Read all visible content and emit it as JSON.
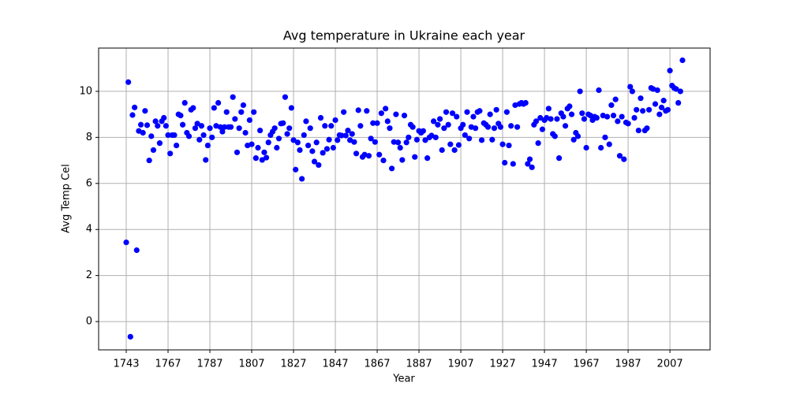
{
  "chart_data": {
    "type": "scatter",
    "title": "Avg temperature in Ukraine each year",
    "x_label": "Year",
    "y_label": "Avg Temp Cel",
    "color": "#0000ff",
    "grid": true,
    "ylim": [
      -1.23,
      11.88
    ],
    "yticks": [
      0,
      2,
      4,
      6,
      8,
      10
    ],
    "categories": [
      1743,
      null,
      null,
      null,
      null,
      null,
      null,
      null,
      null,
      null,
      null,
      null,
      null,
      null,
      null,
      null,
      null,
      null,
      null,
      null,
      1767,
      null,
      null,
      null,
      null,
      null,
      null,
      null,
      null,
      null,
      null,
      null,
      null,
      null,
      null,
      null,
      null,
      null,
      null,
      null,
      1787,
      null,
      null,
      null,
      null,
      null,
      null,
      null,
      null,
      null,
      null,
      null,
      null,
      null,
      null,
      null,
      null,
      null,
      null,
      null,
      1807,
      null,
      null,
      null,
      null,
      null,
      null,
      null,
      null,
      null,
      null,
      null,
      null,
      null,
      null,
      null,
      null,
      null,
      null,
      null,
      1827,
      null,
      null,
      null,
      null,
      null,
      null,
      null,
      null,
      null,
      null,
      null,
      null,
      null,
      null,
      null,
      null,
      null,
      null,
      null,
      1847,
      null,
      null,
      null,
      null,
      null,
      null,
      null,
      null,
      null,
      null,
      null,
      null,
      null,
      null,
      null,
      null,
      null,
      null,
      null,
      1867,
      null,
      null,
      null,
      null,
      null,
      null,
      null,
      null,
      null,
      null,
      null,
      null,
      null,
      null,
      null,
      null,
      null,
      null,
      null,
      1887,
      null,
      null,
      null,
      null,
      null,
      null,
      null,
      null,
      null,
      null,
      null,
      null,
      null,
      null,
      null,
      null,
      null,
      null,
      null,
      1907,
      null,
      null,
      null,
      null,
      null,
      null,
      null,
      null,
      null,
      null,
      null,
      null,
      null,
      null,
      null,
      null,
      null,
      null,
      null,
      1927,
      null,
      null,
      null,
      null,
      null,
      null,
      null,
      null,
      null,
      null,
      null,
      null,
      null,
      null,
      null,
      null,
      null,
      null,
      null,
      1947,
      null,
      null,
      null,
      null,
      null,
      null,
      null,
      null,
      null,
      null,
      null,
      null,
      null,
      null,
      null,
      null,
      null,
      null,
      null,
      1967,
      null,
      null,
      null,
      null,
      null,
      null,
      null,
      null,
      null,
      null,
      null,
      null,
      null,
      null,
      null,
      null,
      null,
      null,
      null,
      1987,
      null,
      null,
      null,
      null,
      null,
      null,
      null,
      null,
      null,
      null,
      null,
      null,
      null,
      null,
      null,
      null,
      null,
      null,
      null,
      2007,
      null,
      null,
      null,
      null,
      null,
      null
    ],
    "values": [
      3.44,
      10.4,
      -0.66,
      8.97,
      9.3,
      3.1,
      8.28,
      8.55,
      8.2,
      9.15,
      8.53,
      7.0,
      8.05,
      7.45,
      8.7,
      8.5,
      7.75,
      8.7,
      8.85,
      8.5,
      8.1,
      7.3,
      8.1,
      8.1,
      7.65,
      9.0,
      8.95,
      8.55,
      9.5,
      8.2,
      8.05,
      9.2,
      9.28,
      8.4,
      8.6,
      7.9,
      8.5,
      8.1,
      7.02,
      7.65,
      8.4,
      8.0,
      9.28,
      8.5,
      9.5,
      8.45,
      8.25,
      8.45,
      9.1,
      8.45,
      8.45,
      9.75,
      8.8,
      7.35,
      8.4,
      9.1,
      9.4,
      8.2,
      7.65,
      8.75,
      7.7,
      9.1,
      7.1,
      7.55,
      8.3,
      7.02,
      7.35,
      7.12,
      7.78,
      8.1,
      8.25,
      8.4,
      7.55,
      7.95,
      8.6,
      8.62,
      9.75,
      8.15,
      8.4,
      9.28,
      7.88,
      6.6,
      7.78,
      7.45,
      6.2,
      8.1,
      8.7,
      7.65,
      8.4,
      7.4,
      6.95,
      7.78,
      6.8,
      8.85,
      7.33,
      8.5,
      7.5,
      7.9,
      8.5,
      7.55,
      8.75,
      7.88,
      8.1,
      8.08,
      9.1,
      8.08,
      8.3,
      7.88,
      8.15,
      7.8,
      7.3,
      9.18,
      8.5,
      7.15,
      7.25,
      9.15,
      7.2,
      7.95,
      8.62,
      7.8,
      8.62,
      7.25,
      9.05,
      7.0,
      9.25,
      8.7,
      8.4,
      6.65,
      7.8,
      9.0,
      7.78,
      7.55,
      7.02,
      8.95,
      7.78,
      8.0,
      8.55,
      8.45,
      7.15,
      7.9,
      8.28,
      8.2,
      8.28,
      7.88,
      7.1,
      8.0,
      8.08,
      8.7,
      8.0,
      8.55,
      8.8,
      7.45,
      8.4,
      9.1,
      8.55,
      7.7,
      9.05,
      7.45,
      8.9,
      7.67,
      8.4,
      8.55,
      8.1,
      9.1,
      7.95,
      8.45,
      8.9,
      8.4,
      9.1,
      9.15,
      7.88,
      8.62,
      8.55,
      8.45,
      9.0,
      7.9,
      8.4,
      9.2,
      8.6,
      8.45,
      7.7,
      6.9,
      9.1,
      7.65,
      8.5,
      6.85,
      9.4,
      8.45,
      9.45,
      9.5,
      9.45,
      9.5,
      6.85,
      7.05,
      6.7,
      8.55,
      8.7,
      7.75,
      8.85,
      8.35,
      8.75,
      8.85,
      9.25,
      8.8,
      8.15,
      8.05,
      8.8,
      7.1,
      9.05,
      8.9,
      8.5,
      9.25,
      9.35,
      9.0,
      7.9,
      8.2,
      8.05,
      10.0,
      9.05,
      8.8,
      7.55,
      9.0,
      8.95,
      8.75,
      8.9,
      8.85,
      10.05,
      7.55,
      8.95,
      8.0,
      8.9,
      7.7,
      9.4,
      8.95,
      9.65,
      8.7,
      7.2,
      8.9,
      7.05,
      8.65,
      8.6,
      10.2,
      10.0,
      8.85,
      9.2,
      8.3,
      9.7,
      9.15,
      8.3,
      8.4,
      9.2,
      10.15,
      10.1,
      9.45,
      10.05,
      9.0,
      9.3,
      9.6,
      9.15,
      9.2,
      10.9,
      10.25,
      10.15,
      10.1,
      9.5,
      10.0,
      11.35
    ]
  }
}
